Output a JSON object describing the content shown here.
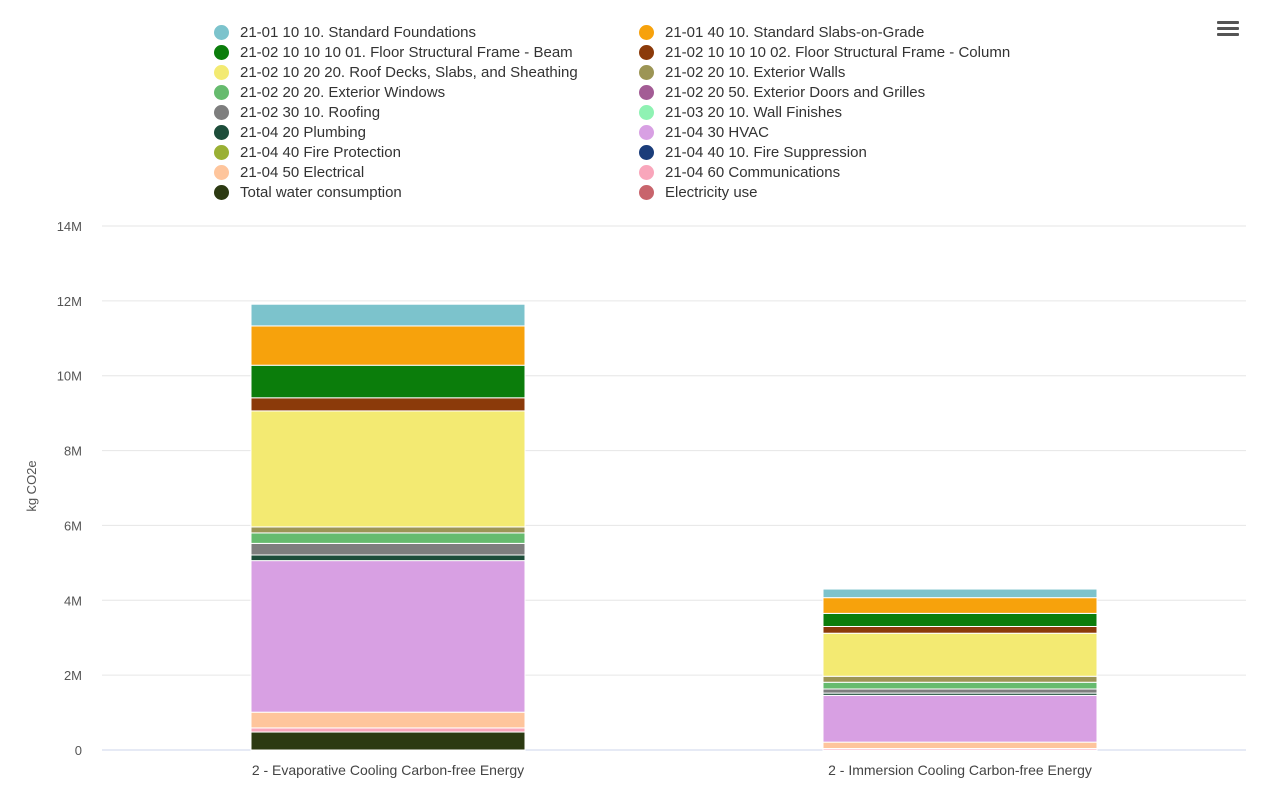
{
  "menu": {
    "icon": "hamburger-menu-icon"
  },
  "chart_data": {
    "type": "bar",
    "stacked": true,
    "title": "",
    "xlabel": "",
    "ylabel": "kg CO2e",
    "ylim": [
      0,
      14000000
    ],
    "yticks": [
      {
        "value": 0,
        "label": "0"
      },
      {
        "value": 2000000,
        "label": "2M"
      },
      {
        "value": 4000000,
        "label": "4M"
      },
      {
        "value": 6000000,
        "label": "6M"
      },
      {
        "value": 8000000,
        "label": "8M"
      },
      {
        "value": 10000000,
        "label": "10M"
      },
      {
        "value": 12000000,
        "label": "12M"
      },
      {
        "value": 14000000,
        "label": "14M"
      }
    ],
    "grid": true,
    "legend_position": "top",
    "categories": [
      "2 - Evaporative Cooling Carbon-free Energy",
      "2 - Immersion Cooling Carbon-free Energy"
    ],
    "series": [
      {
        "name": "21-01 10 10. Standard Foundations",
        "color": "#7cc3cc",
        "values": [
          580000,
          230000
        ]
      },
      {
        "name": "21-01 40 10. Standard Slabs-on-Grade",
        "color": "#f7a20c",
        "values": [
          1050000,
          420000
        ]
      },
      {
        "name": "21-02 10 10 10 01. Floor Structural Frame - Beam",
        "color": "#0b7d0b",
        "values": [
          870000,
          350000
        ]
      },
      {
        "name": "21-02 10 10 10 02. Floor Structural Frame - Column",
        "color": "#8b3a0a",
        "values": [
          350000,
          180000
        ]
      },
      {
        "name": "21-02 10 20 20. Roof Decks, Slabs, and Sheathing",
        "color": "#f3ea72",
        "values": [
          3100000,
          1150000
        ]
      },
      {
        "name": "21-02 20 10. Exterior Walls",
        "color": "#9c9555",
        "values": [
          160000,
          160000
        ]
      },
      {
        "name": "21-02 20 20. Exterior Windows",
        "color": "#66bb6e",
        "values": [
          280000,
          180000
        ]
      },
      {
        "name": "21-02 20 50. Exterior Doors and Grilles",
        "color": "#a35c95",
        "values": [
          0,
          0
        ]
      },
      {
        "name": "21-02 30 10. Roofing",
        "color": "#7e7e7e",
        "values": [
          310000,
          110000
        ]
      },
      {
        "name": "21-03 20 10. Wall Finishes",
        "color": "#8ff2b3",
        "values": [
          0,
          0
        ]
      },
      {
        "name": "21-04 20 Plumbing",
        "color": "#1d4d3a",
        "values": [
          150000,
          60000
        ]
      },
      {
        "name": "21-04 30 HVAC",
        "color": "#d8a0e3",
        "values": [
          4050000,
          1250000
        ]
      },
      {
        "name": "21-04 40 Fire Protection",
        "color": "#9ab034",
        "values": [
          0,
          0
        ]
      },
      {
        "name": "21-04 40 10. Fire Suppression",
        "color": "#1b3d7a",
        "values": [
          0,
          0
        ]
      },
      {
        "name": "21-04 50 Electrical",
        "color": "#fec59c",
        "values": [
          420000,
          170000
        ]
      },
      {
        "name": "21-04 60 Communications",
        "color": "#f9a6bb",
        "values": [
          110000,
          40000
        ]
      },
      {
        "name": "Total water consumption",
        "color": "#2c3a12",
        "values": [
          480000,
          0
        ]
      },
      {
        "name": "Electricity use",
        "color": "#c8646c",
        "values": [
          0,
          0
        ]
      }
    ]
  }
}
